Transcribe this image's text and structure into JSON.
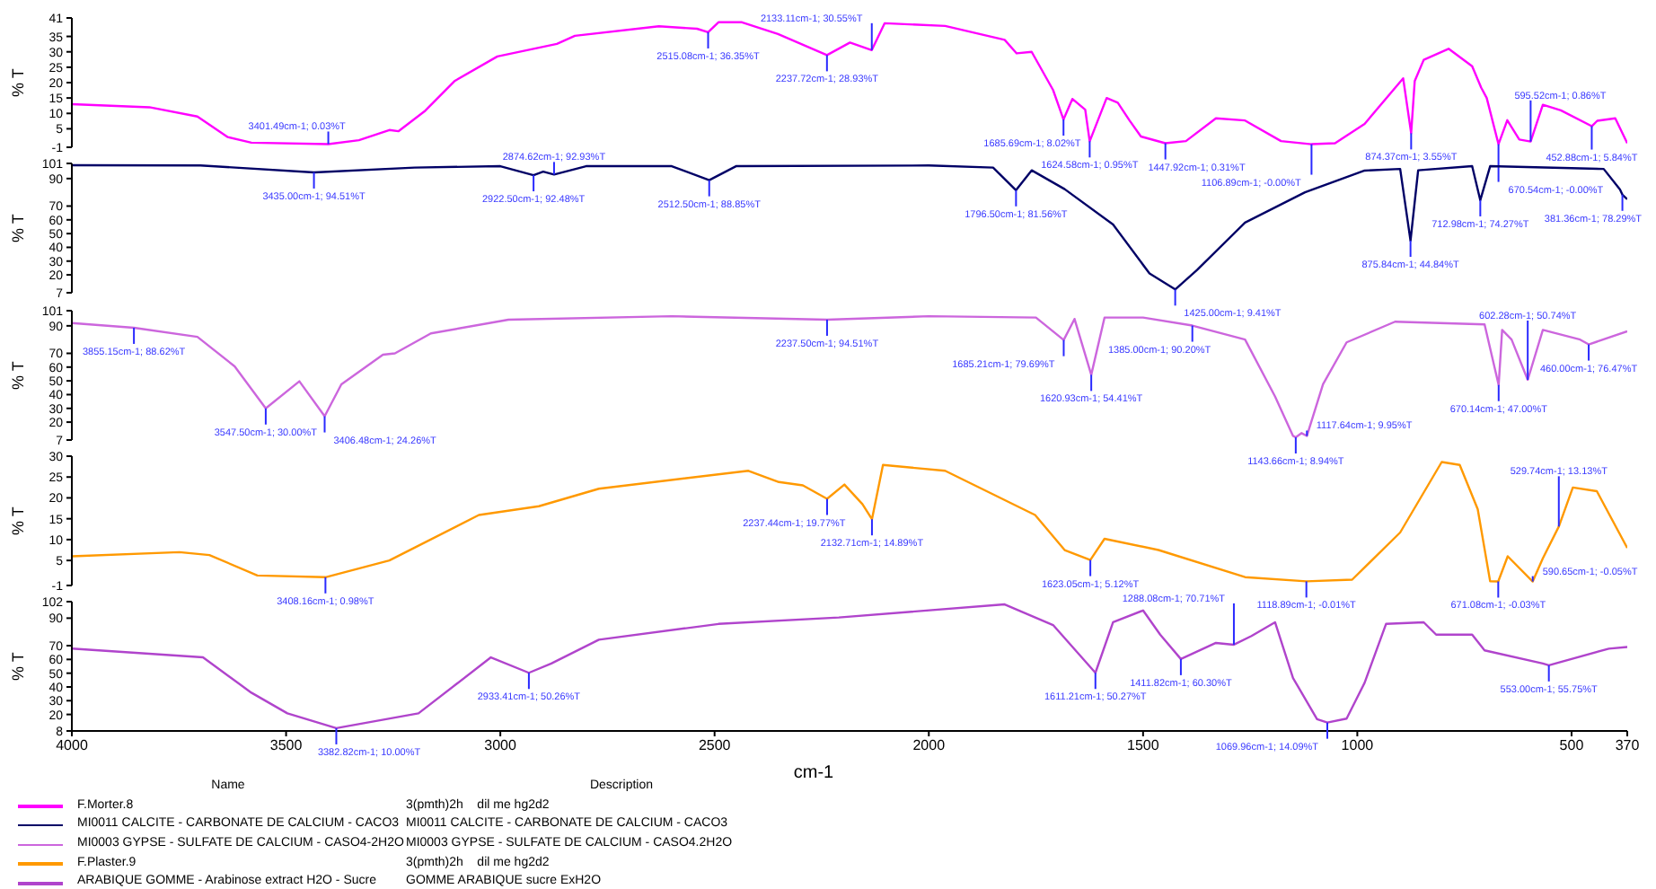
{
  "chart_data": [
    {
      "type": "line",
      "ylabel": "% T",
      "xlim": [
        4000,
        370
      ],
      "ylim": [
        -1,
        41
      ],
      "yticks": [
        -1,
        5,
        10,
        15,
        20,
        25,
        30,
        35,
        41
      ],
      "tick_labels": "y",
      "legend": "bottom",
      "legend_title": "Name",
      "x": [
        4000,
        3819,
        3707,
        3636,
        3581,
        3401.49,
        3330,
        3259,
        3238,
        3175,
        3107,
        3007,
        2868,
        2826,
        2630,
        2541,
        2515.08,
        2491,
        2436,
        2352,
        2237.72,
        2184,
        2133.11,
        2103,
        1962,
        1823,
        1795,
        1760,
        1710,
        1685.69,
        1665,
        1635,
        1624.58,
        1585,
        1559,
        1532,
        1505,
        1447.92,
        1400,
        1330,
        1262,
        1178,
        1106.89,
        1052,
        983,
        893,
        874.37,
        866,
        845,
        787,
        732,
        711,
        698,
        670.54,
        650,
        622,
        595.52,
        567,
        525,
        452.88,
        440,
        398,
        370
      ],
      "series": [
        {
          "name": "F.Morter.8",
          "color": "#ff00ff",
          "values": [
            13,
            12,
            9,
            2.3,
            0.5,
            0.03,
            1.3,
            4.6,
            4.2,
            10.9,
            20.5,
            28.5,
            32.6,
            35.2,
            38.3,
            37.5,
            36.35,
            39.6,
            39.6,
            35.8,
            28.93,
            33,
            30.55,
            39.3,
            38.4,
            33.9,
            29.5,
            30,
            17.6,
            8.02,
            14.7,
            11.2,
            0.95,
            15,
            13.5,
            7.8,
            2.5,
            0.31,
            1,
            8.4,
            7.7,
            1,
            0,
            0.3,
            6.6,
            21.4,
            3.55,
            20.5,
            27.4,
            31,
            25.3,
            18.4,
            15,
            0,
            7.8,
            1.5,
            0.86,
            12.8,
            11,
            5.84,
            7.6,
            8.4,
            0.3
          ]
        }
      ],
      "annotations": [
        "Description",
        "3(pmth)2h    dil me hg2d2",
        {
          "text": "3401.49cm-1; 0.03%T",
          "x": 3401.49,
          "y": 0.03
        },
        {
          "text": "2515.08cm-1; 36.35%T",
          "x": 2515.08,
          "y": 36.35
        },
        {
          "text": "2237.72cm-1; 28.93%T",
          "x": 2237.72,
          "y": 28.93
        },
        {
          "text": "2133.11cm-1; 30.55%T",
          "x": 2133.11,
          "y": 30.55
        },
        {
          "text": "1685.69cm-1; 8.02%T",
          "x": 1685.69,
          "y": 8.02
        },
        {
          "text": "1624.58cm-1; 0.95%T",
          "x": 1624.58,
          "y": 0.95
        },
        {
          "text": "1447.92cm-1; 0.31%T",
          "x": 1447.92,
          "y": 0.31
        },
        {
          "text": "1106.89cm-1; -0.00%T",
          "x": 1106.89,
          "y": 0
        },
        {
          "text": "874.37cm-1; 3.55%T",
          "x": 874.37,
          "y": 3.55
        },
        {
          "text": "670.54cm-1; -0.00%T",
          "x": 670.54,
          "y": 0
        },
        {
          "text": "595.52cm-1; 0.86%T",
          "x": 595.52,
          "y": 0.86
        },
        {
          "text": "452.88cm-1; 5.84%T",
          "x": 452.88,
          "y": 5.84
        }
      ]
    },
    {
      "type": "line",
      "ylabel": "% T",
      "xlim": [
        4000,
        370
      ],
      "ylim": [
        7,
        101
      ],
      "yticks": [
        7,
        20,
        30,
        40,
        50,
        60,
        70,
        90,
        101
      ],
      "tick_labels": "y",
      "legend": "bottom",
      "x": [
        4000,
        3700,
        3435,
        3200,
        3000,
        2922.5,
        2900,
        2874.62,
        2800,
        2600,
        2512.5,
        2450,
        2000,
        1850,
        1796.5,
        1760,
        1683,
        1570,
        1485,
        1425,
        1374,
        1262,
        1122,
        983,
        900,
        875.84,
        858,
        732,
        712.98,
        690,
        425,
        387,
        381.36,
        370
      ],
      "series": [
        {
          "name": "MI0011 CALCITE - CARBONATE DE CALCIUM - CACO3",
          "color": "#000066",
          "values": [
            99.7,
            99.5,
            94.51,
            98,
            99,
            92.48,
            95,
            92.93,
            99,
            99,
            88.85,
            99,
            99.5,
            98,
            81.56,
            96,
            82.3,
            56.6,
            21,
            9.41,
            23.5,
            58,
            80,
            95.8,
            97,
            44.84,
            96,
            99,
            74.27,
            99,
            97,
            82,
            78.29,
            75
          ]
        }
      ],
      "annotations": [
        "MI0011 CALCITE - CARBONATE DE CALCIUM - CACO3",
        {
          "text": "3435.00cm-1; 94.51%T",
          "x": 3435,
          "y": 94.51
        },
        {
          "text": "2922.50cm-1; 92.48%T",
          "x": 2922.5,
          "y": 92.48
        },
        {
          "text": "2874.62cm-1; 92.93%T",
          "x": 2874.62,
          "y": 92.93
        },
        {
          "text": "2512.50cm-1; 88.85%T",
          "x": 2512.5,
          "y": 88.85
        },
        {
          "text": "1796.50cm-1; 81.56%T",
          "x": 1796.5,
          "y": 81.56
        },
        {
          "text": "1425.00cm-1; 9.41%T",
          "x": 1425,
          "y": 9.41
        },
        {
          "text": "875.84cm-1; 44.84%T",
          "x": 875.84,
          "y": 44.84
        },
        {
          "text": "712.98cm-1; 74.27%T",
          "x": 712.98,
          "y": 74.27
        },
        {
          "text": "381.36cm-1; 78.29%T",
          "x": 381.36,
          "y": 78.29
        }
      ]
    },
    {
      "type": "line",
      "ylabel": "% T",
      "xlim": [
        4000,
        370
      ],
      "ylim": [
        7,
        101
      ],
      "yticks": [
        7,
        20,
        30,
        40,
        50,
        60,
        70,
        90,
        101
      ],
      "tick_labels": "y",
      "legend": "bottom",
      "x": [
        4000,
        3855.15,
        3707,
        3620,
        3547.5,
        3469,
        3410,
        3371,
        3274,
        3246,
        3162,
        2981,
        2600,
        2237.5,
        2000,
        1750,
        1685.21,
        1660,
        1620.93,
        1590,
        1500,
        1385,
        1262,
        1192,
        1150,
        1143.66,
        1130,
        1117.64,
        1080,
        1025,
        912,
        703,
        670.14,
        662,
        640,
        602.28,
        567,
        480,
        460,
        370
      ],
      "series": [
        {
          "name": "MI0003 GYPSE - SULFATE DE CALCIUM - CASO4-2H2O",
          "color": "#cc66dd",
          "values": [
            92,
            88.62,
            82,
            60.5,
            30,
            49.7,
            24.26,
            47.5,
            69,
            70,
            84.5,
            94.5,
            97,
            94.51,
            97,
            96,
            79.69,
            95,
            54.41,
            96,
            96,
            90.2,
            80,
            38.7,
            10,
            8.94,
            12,
            9.95,
            47.5,
            78,
            93,
            91,
            47,
            87,
            80,
            50.74,
            87,
            80,
            76.47,
            86
          ]
        }
      ],
      "annotations": [
        "MI0003 GYPSE - SULFATE DE CALCIUM - CASO4.2H2O",
        {
          "text": "3855.15cm-1; 88.62%T",
          "x": 3855.15,
          "y": 88.62
        },
        {
          "text": "3547.50cm-1; 30.00%T",
          "x": 3547.5,
          "y": 30
        },
        {
          "text": "3406.48cm-1; 24.26%T",
          "x": 3410,
          "y": 24.26
        },
        {
          "text": "2237.50cm-1; 94.51%T",
          "x": 2237.5,
          "y": 94.51
        },
        {
          "text": "1685.21cm-1; 79.69%T",
          "x": 1685.21,
          "y": 79.69
        },
        {
          "text": "1620.93cm-1; 54.41%T",
          "x": 1620.93,
          "y": 54.41
        },
        {
          "text": "1385.00cm-1; 90.20%T",
          "x": 1385,
          "y": 90.2
        },
        {
          "text": "1143.66cm-1; 8.94%T",
          "x": 1143.66,
          "y": 8.94
        },
        {
          "text": "1117.64cm-1; 9.95%T",
          "x": 1117.64,
          "y": 9.95
        },
        {
          "text": "670.14cm-1; 47.00%T",
          "x": 670.14,
          "y": 47
        },
        {
          "text": "602.28cm-1; 50.74%T",
          "x": 602.28,
          "y": 50.74
        },
        {
          "text": "460.00cm-1; 76.47%T",
          "x": 460,
          "y": 76.47
        }
      ]
    },
    {
      "type": "line",
      "ylabel": "% T",
      "xlim": [
        4000,
        370
      ],
      "ylim": [
        -1,
        30
      ],
      "yticks": [
        -1,
        5,
        10,
        15,
        20,
        25,
        30
      ],
      "tick_labels": "y",
      "legend": "bottom",
      "x": [
        4000,
        3749,
        3679,
        3567,
        3408.16,
        3259,
        3050,
        2910,
        2770,
        2421,
        2350,
        2294,
        2237.44,
        2197,
        2155,
        2132.71,
        2107,
        1962,
        1752,
        1683,
        1623.05,
        1590,
        1464,
        1262,
        1118.89,
        1012,
        900,
        803,
        761,
        719,
        690,
        671.08,
        649,
        590.65,
        567,
        529.74,
        497,
        441,
        370
      ],
      "series": [
        {
          "name": "F.Plaster.9",
          "color": "#ff9900",
          "values": [
            6,
            7,
            6.3,
            1.4,
            0.98,
            5,
            15.9,
            18,
            22.2,
            26.5,
            23.8,
            23,
            19.77,
            23.2,
            18.5,
            14.89,
            27.9,
            26.5,
            15.9,
            7.5,
            5.12,
            10.2,
            7.5,
            1,
            -0.01,
            0.4,
            11.7,
            28.6,
            27.9,
            17.3,
            0,
            -0.03,
            6,
            -0.05,
            5.5,
            13.13,
            22.5,
            21.6,
            8
          ]
        }
      ],
      "annotations": [
        "3(pmth)2h    dil me hg2d2",
        {
          "text": "3408.16cm-1; 0.98%T",
          "x": 3408.16,
          "y": 0.98
        },
        {
          "text": "2237.44cm-1; 19.77%T",
          "x": 2237.44,
          "y": 19.77
        },
        {
          "text": "2132.71cm-1; 14.89%T",
          "x": 2132.71,
          "y": 14.89
        },
        {
          "text": "1623.05cm-1; 5.12%T",
          "x": 1623.05,
          "y": 5.12
        },
        {
          "text": "1118.89cm-1; -0.01%T",
          "x": 1118.89,
          "y": -0.01
        },
        {
          "text": "671.08cm-1; -0.03%T",
          "x": 671.08,
          "y": -0.03
        },
        {
          "text": "590.65cm-1; -0.05%T",
          "x": 590.65,
          "y": -0.05
        },
        {
          "text": "529.74cm-1; 13.13%T",
          "x": 529.74,
          "y": 13.13
        }
      ]
    },
    {
      "type": "line",
      "ylabel": "% T",
      "xlabel": "cm-1",
      "xlim": [
        4000,
        370
      ],
      "xticks": [
        4000,
        3500,
        3000,
        2500,
        2000,
        1500,
        1000,
        500,
        370
      ],
      "ylim": [
        8,
        102
      ],
      "yticks": [
        8,
        20,
        30,
        40,
        50,
        60,
        70,
        90,
        102
      ],
      "legend": "bottom",
      "x": [
        4000,
        3694,
        3581,
        3497,
        3382.82,
        3191,
        3022,
        2933.41,
        2881,
        2770,
        2491,
        2210,
        1823,
        1710,
        1611.21,
        1570,
        1500,
        1460,
        1411.82,
        1330,
        1288.08,
        1247,
        1192,
        1150,
        1094,
        1069.96,
        1025,
        983,
        933,
        845,
        816,
        732,
        703,
        567,
        553,
        413,
        370
      ],
      "series": [
        {
          "name": "ARABIQUE GOMME - Arabinose extract H2O - Sucre",
          "color": "#b044cc",
          "values": [
            67.9,
            61.5,
            35.8,
            20.8,
            10,
            20.8,
            61.5,
            50.26,
            57,
            74.3,
            85.8,
            90.5,
            100,
            85,
            50.27,
            87,
            95.6,
            78,
            60.3,
            72,
            70.71,
            77,
            87,
            46.5,
            16.6,
            14.09,
            17,
            43,
            85.8,
            87,
            78,
            78,
            66.6,
            57,
            55.75,
            67.8,
            69
          ]
        }
      ],
      "annotations": [
        "GOMME ARABIQUE sucre ExH2O",
        {
          "text": "3382.82cm-1; 10.00%T",
          "x": 3382.82,
          "y": 10
        },
        {
          "text": "2933.41cm-1; 50.26%T",
          "x": 2933.41,
          "y": 50.26
        },
        {
          "text": "1611.21cm-1; 50.27%T",
          "x": 1611.21,
          "y": 50.27
        },
        {
          "text": "1411.82cm-1; 60.30%T",
          "x": 1411.82,
          "y": 60.3
        },
        {
          "text": "1288.08cm-1; 70.71%T",
          "x": 1288.08,
          "y": 70.71
        },
        {
          "text": "1069.96cm-1; 14.09%T",
          "x": 1069.96,
          "y": 14.09
        },
        {
          "text": "553.00cm-1; 55.75%T",
          "x": 553,
          "y": 55.75
        }
      ]
    }
  ]
}
